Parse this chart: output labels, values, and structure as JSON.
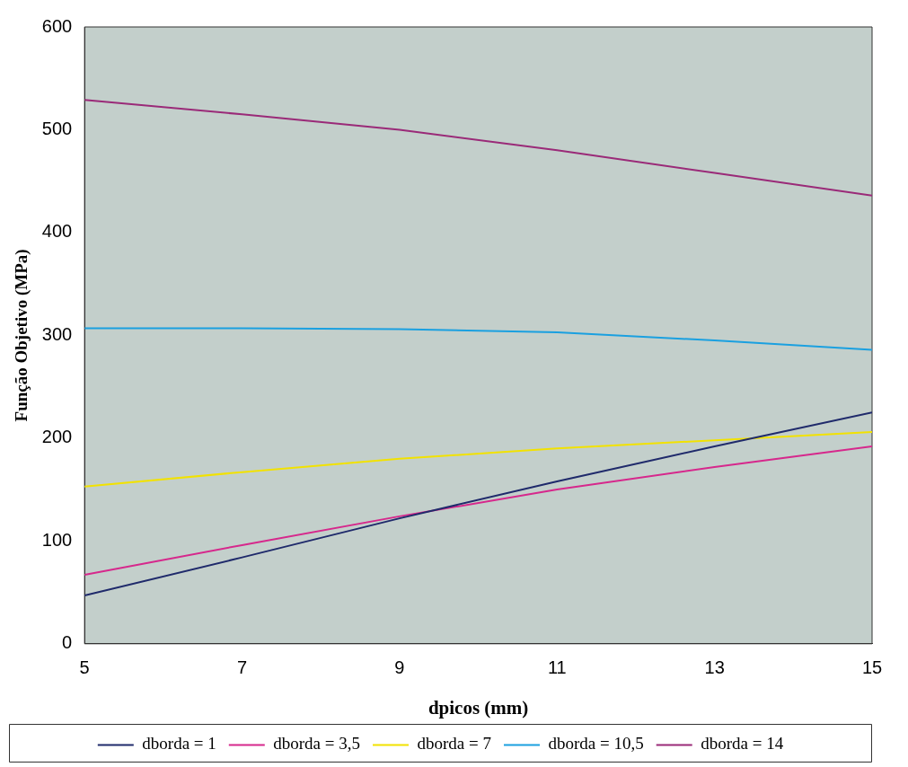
{
  "chart_data": {
    "type": "line",
    "xlabel": "dpicos (mm)",
    "ylabel": "Função Objetivo (MPa)",
    "x": [
      5,
      7,
      9,
      11,
      13,
      15
    ],
    "xlim": [
      5,
      15
    ],
    "xticks": [
      5,
      7,
      9,
      11,
      13,
      15
    ],
    "ylim": [
      0,
      600
    ],
    "yticks": [
      0,
      100,
      200,
      300,
      400,
      500,
      600
    ],
    "grid": false,
    "legend": "bottom",
    "marker": "none",
    "line_style": "solid",
    "series": [
      {
        "name": "dborda = 1",
        "color": "#1f2a6b",
        "values": [
          47,
          84,
          122,
          158,
          192,
          225
        ]
      },
      {
        "name": "dborda = 3,5",
        "color": "#d6288c",
        "values": [
          67,
          96,
          124,
          150,
          172,
          192
        ]
      },
      {
        "name": "dborda = 7",
        "color": "#f2e200",
        "values": [
          153,
          167,
          180,
          190,
          198,
          206
        ]
      },
      {
        "name": "dborda = 10,5",
        "color": "#1aa0e0",
        "values": [
          307,
          307,
          306,
          303,
          295,
          286
        ]
      },
      {
        "name": "dborda = 14",
        "color": "#9a2a78",
        "values": [
          529,
          515,
          500,
          480,
          458,
          436
        ]
      }
    ]
  }
}
